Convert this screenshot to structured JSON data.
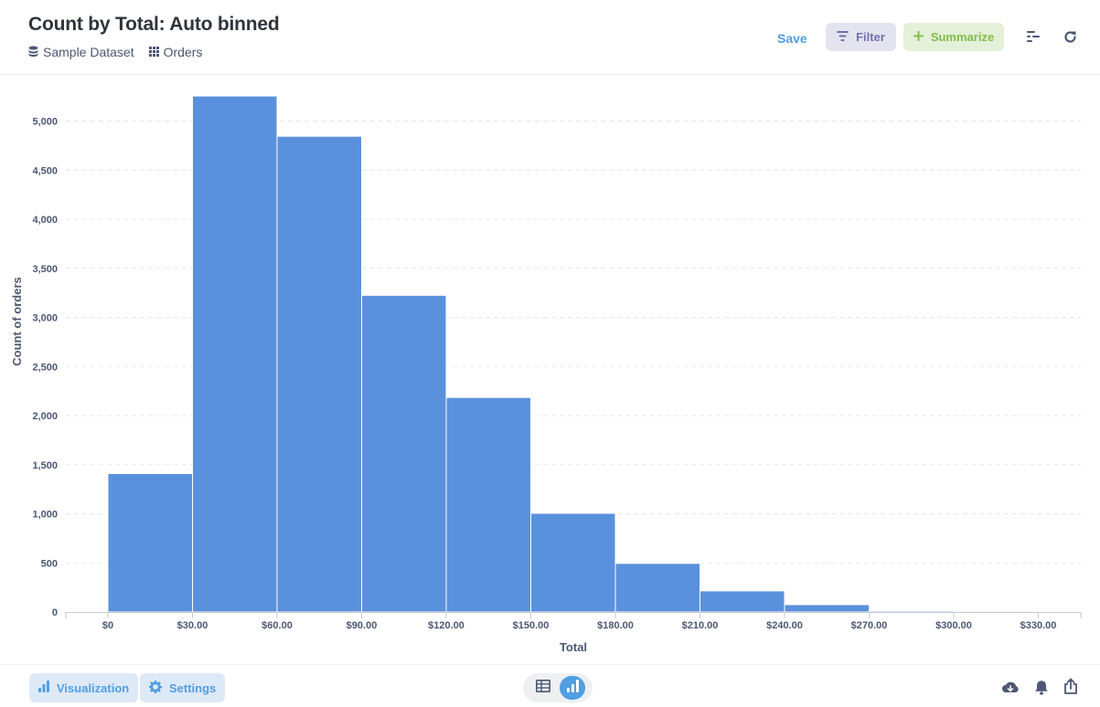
{
  "header": {
    "title": "Count by Total: Auto binned",
    "breadcrumbs": [
      {
        "label": "Sample Dataset",
        "icon": "database-icon"
      },
      {
        "label": "Orders",
        "icon": "table-grid-icon"
      }
    ],
    "save_label": "Save",
    "filter_label": "Filter",
    "summarize_label": "Summarize",
    "icons": [
      "notebook-icon",
      "refresh-icon"
    ]
  },
  "colors": {
    "bar": "#5a91dc",
    "accent": "#509ee3",
    "filter": "#7172ad",
    "summarize": "#84bb4c"
  },
  "chart_data": {
    "type": "bar",
    "title": "",
    "xlabel": "Total",
    "ylabel": "Count of orders",
    "ylim": [
      0,
      5300
    ],
    "ytick_values": [
      0,
      500,
      1000,
      1500,
      2000,
      2500,
      3000,
      3500,
      4000,
      4500,
      5000
    ],
    "ytick_labels": [
      "0",
      "500",
      "1,000",
      "1,500",
      "2,000",
      "2,500",
      "3,000",
      "3,500",
      "4,000",
      "4,500",
      "5,000"
    ],
    "xtick_labels": [
      "$0",
      "$30.00",
      "$60.00",
      "$90.00",
      "$120.00",
      "$150.00",
      "$180.00",
      "$210.00",
      "$240.00",
      "$270.00",
      "$300.00",
      "$330.00"
    ],
    "bin_width": 30,
    "categories": [
      "$0",
      "$30.00",
      "$60.00",
      "$90.00",
      "$120.00",
      "$150.00",
      "$180.00",
      "$210.00",
      "$240.00",
      "$270.00",
      "$300.00"
    ],
    "bin_starts": [
      0,
      30,
      60,
      90,
      120,
      150,
      180,
      210,
      240,
      270,
      300
    ],
    "values": [
      1410,
      5255,
      4845,
      3225,
      2185,
      1005,
      495,
      215,
      75,
      12,
      10
    ],
    "grid": true,
    "legend": "none"
  },
  "footer": {
    "visualization_label": "Visualization",
    "settings_label": "Settings",
    "view_toggle": [
      "table-icon",
      "chart-icon"
    ],
    "right_icons": [
      "download-icon",
      "bell-icon",
      "share-icon"
    ]
  }
}
